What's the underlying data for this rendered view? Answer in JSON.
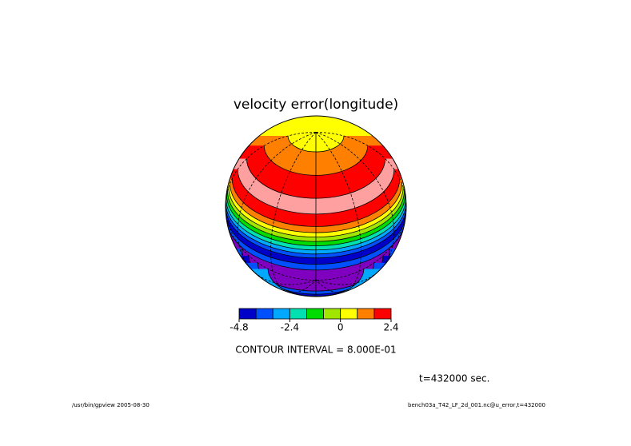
{
  "chart_data": {
    "type": "contour",
    "title": "velocity error(longitude)",
    "colorbar": {
      "levels": [
        -4.8,
        -4,
        -3.2,
        -2.4,
        -1.6,
        -0.8,
        0,
        0.8,
        1.6,
        2.4
      ],
      "colors": [
        "#0000c8",
        "#0050ff",
        "#00a8ff",
        "#00e0b0",
        "#00dc00",
        "#a0e600",
        "#ffff00",
        "#ff8000",
        "#ff0000"
      ],
      "xlim": [
        -4.8,
        2.4
      ],
      "xticks": [
        -4.8,
        -2.4,
        0,
        2.4
      ]
    },
    "contour_interval_label": "CONTOUR INTERVAL = 8.000E-01",
    "time_label": "t=432000 sec.",
    "footer_left": "/usr/bin/gpview  2005-08-30",
    "footer_right": "bench03a_T42_LF_2d_001.nc@u_error,t=432000"
  }
}
